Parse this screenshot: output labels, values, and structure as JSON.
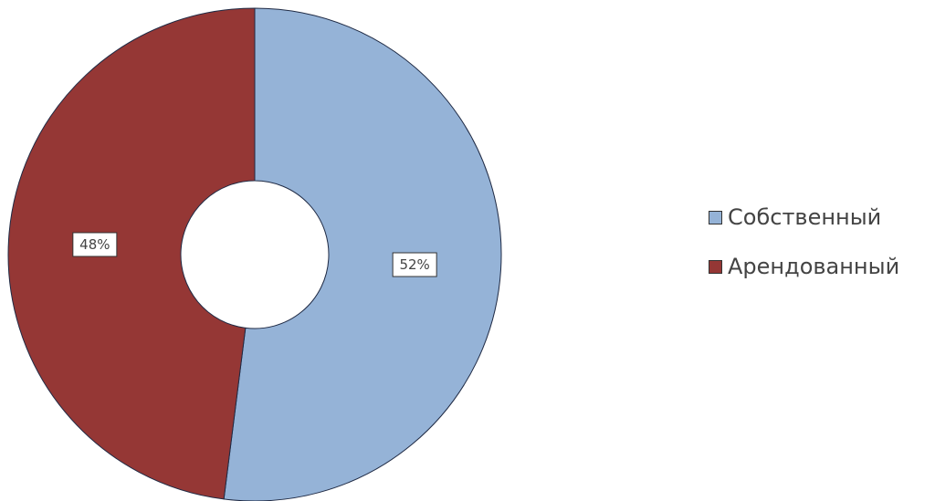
{
  "chart_data": {
    "type": "pie",
    "variant": "donut",
    "title": "",
    "legend_position": "right",
    "slices": [
      {
        "name": "Собственный",
        "value": 52,
        "label": "52%",
        "color": "#95b3d7"
      },
      {
        "name": "Арендованный",
        "value": 48,
        "label": "48%",
        "color": "#953735"
      }
    ]
  }
}
